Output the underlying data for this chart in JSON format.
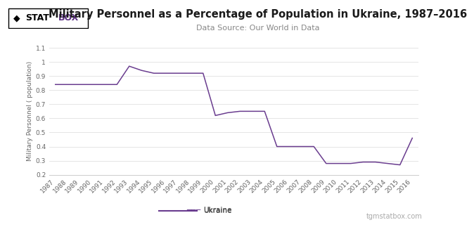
{
  "title": "Military Personnel as a Percentage of Population in Ukraine, 1987–2016",
  "subtitle": "Data Source: Our World in Data",
  "ylabel": "Military Personnel ( population)",
  "legend_label": "Ukraine",
  "watermark": "tgmstatbox.com",
  "line_color": "#6a3d8f",
  "background_color": "#ffffff",
  "years": [
    1987,
    1988,
    1989,
    1990,
    1991,
    1992,
    1993,
    1994,
    1995,
    1996,
    1997,
    1998,
    1999,
    2000,
    2001,
    2002,
    2003,
    2004,
    2005,
    2006,
    2007,
    2008,
    2009,
    2010,
    2011,
    2012,
    2013,
    2014,
    2015,
    2016
  ],
  "values": [
    0.84,
    0.84,
    0.84,
    0.84,
    0.84,
    0.84,
    0.97,
    0.94,
    0.92,
    0.92,
    0.92,
    0.92,
    0.92,
    0.62,
    0.64,
    0.65,
    0.65,
    0.65,
    0.4,
    0.4,
    0.4,
    0.4,
    0.28,
    0.28,
    0.28,
    0.29,
    0.29,
    0.28,
    0.27,
    0.46
  ],
  "ylim": [
    0.2,
    1.1
  ],
  "yticks": [
    0.2,
    0.3,
    0.4,
    0.5,
    0.6,
    0.7,
    0.8,
    0.9,
    1.0,
    1.1
  ],
  "grid_color": "#e0e0e0",
  "title_fontsize": 10.5,
  "subtitle_fontsize": 8,
  "tick_fontsize": 6.5,
  "ylabel_fontsize": 6.5,
  "legend_fontsize": 7.5,
  "watermark_fontsize": 7
}
